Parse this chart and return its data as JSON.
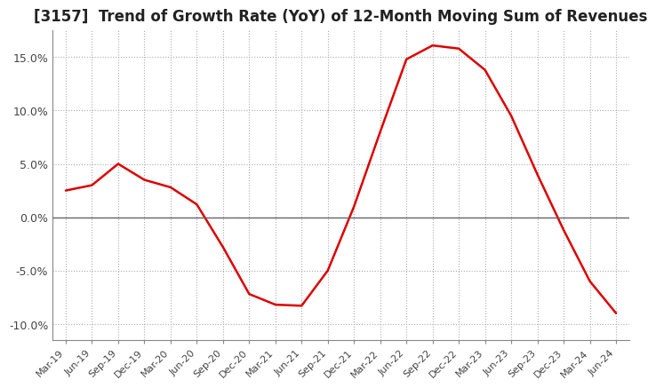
{
  "title": "[3157]  Trend of Growth Rate (YoY) of 12-Month Moving Sum of Revenues",
  "title_fontsize": 12,
  "line_color": "#dd0000",
  "background_color": "#ffffff",
  "plot_bg_color": "#ffffff",
  "grid_color": "#aaaaaa",
  "ylim": [
    -0.115,
    0.175
  ],
  "yticks": [
    -0.1,
    -0.05,
    0.0,
    0.05,
    0.1,
    0.15
  ],
  "ytick_labels": [
    "-10.0%",
    "-5.0%",
    "0.0%",
    "5.0%",
    "10.0%",
    "15.0%"
  ],
  "x_labels": [
    "Mar-19",
    "Jun-19",
    "Sep-19",
    "Dec-19",
    "Mar-20",
    "Jun-20",
    "Sep-20",
    "Dec-20",
    "Mar-21",
    "Jun-21",
    "Sep-21",
    "Dec-21",
    "Mar-22",
    "Jun-22",
    "Sep-22",
    "Dec-22",
    "Mar-23",
    "Jun-23",
    "Sep-23",
    "Dec-23",
    "Mar-24",
    "Jun-24"
  ],
  "values": [
    0.025,
    0.03,
    0.05,
    0.035,
    0.028,
    0.012,
    -0.028,
    -0.072,
    -0.082,
    -0.083,
    -0.05,
    0.01,
    0.08,
    0.148,
    0.161,
    0.158,
    0.138,
    0.095,
    0.04,
    -0.012,
    -0.06,
    -0.09
  ]
}
